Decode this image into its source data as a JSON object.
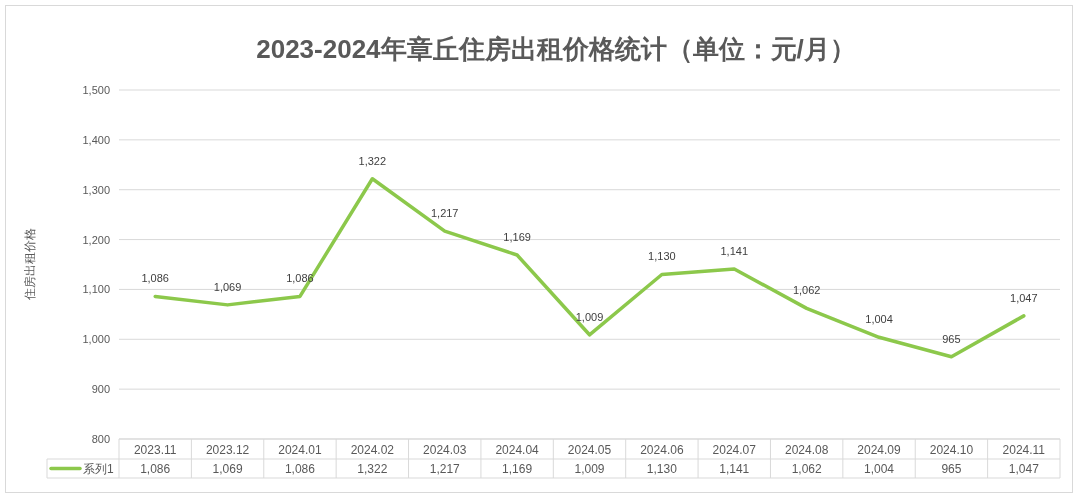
{
  "chart_data": {
    "type": "line",
    "title": "2023-2024年章丘住房出租价格统计（单位：元/月）",
    "ylabel": "住房出租价格",
    "categories": [
      "2023.11",
      "2023.12",
      "2024.01",
      "2024.02",
      "2024.03",
      "2024.04",
      "2024.05",
      "2024.06",
      "2024.07",
      "2024.08",
      "2024.09",
      "2024.10",
      "2024.11"
    ],
    "series": [
      {
        "name": "系列1",
        "color": "#8cc84b",
        "values": [
          1086,
          1069,
          1086,
          1322,
          1217,
          1169,
          1009,
          1130,
          1141,
          1062,
          1004,
          965,
          1047
        ],
        "value_labels": [
          "1,086",
          "1,069",
          "1,086",
          "1,322",
          "1,217",
          "1,169",
          "1,009",
          "1,130",
          "1,141",
          "1,062",
          "1,004",
          "965",
          "1,047"
        ]
      }
    ],
    "ylim": [
      800,
      1500
    ],
    "yticks": [
      800,
      900,
      {
        "value": 1000,
        "label": "1,000"
      },
      {
        "value": 1100,
        "label": "1,100"
      },
      {
        "value": 1200,
        "label": "1,200"
      },
      {
        "value": 1300,
        "label": "1,300"
      },
      {
        "value": 1400,
        "label": "1,400"
      },
      {
        "value": 1500,
        "label": "1,500"
      }
    ],
    "grid": "y",
    "legend": "bottom"
  }
}
